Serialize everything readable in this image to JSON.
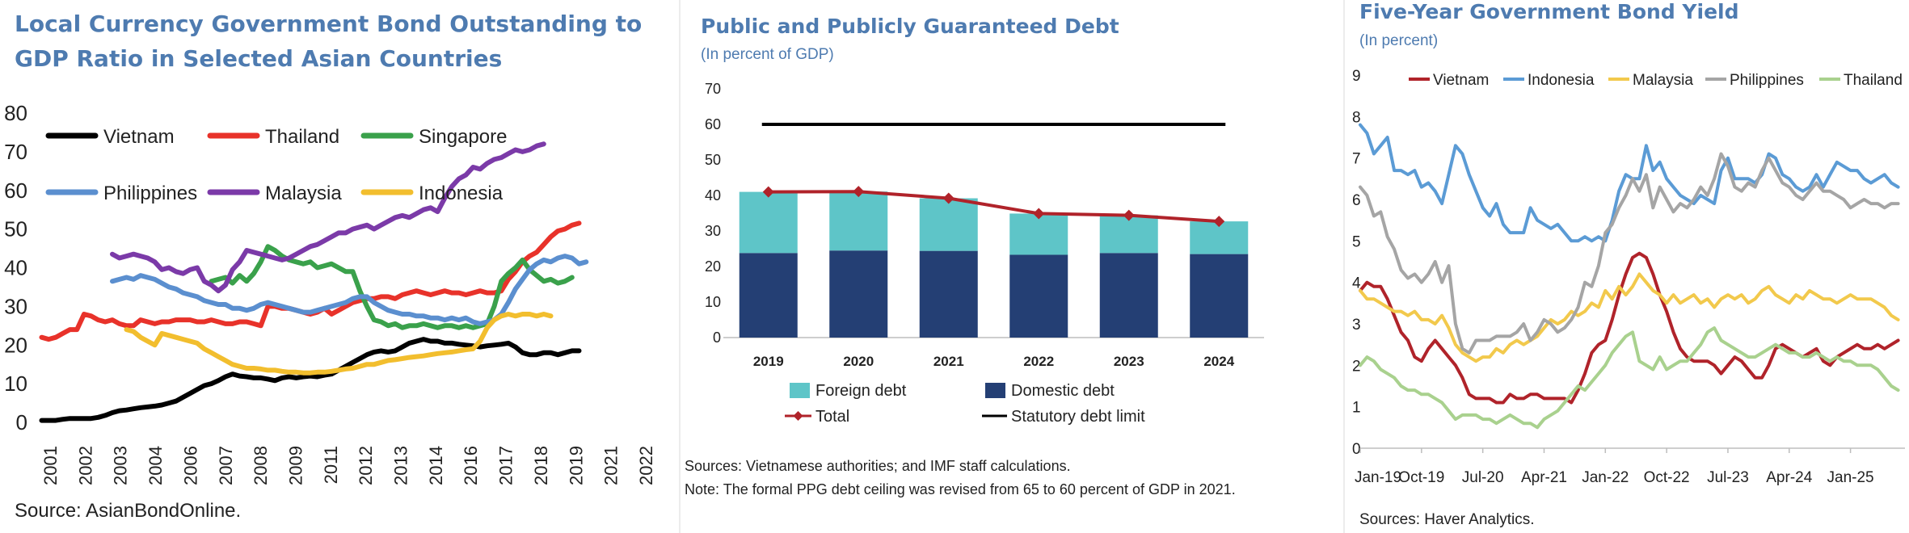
{
  "charts": [
    {
      "title_line1": "Local Currency Government Bond Outstanding to",
      "title_line2": "GDP Ratio in Selected Asian Countries",
      "source": "Source: AsianBondOnline."
    },
    {
      "title": "Public and Publicly Guaranteed Debt",
      "subtitle": "(In percent of GDP)",
      "sources": "Sources: Vietnamese authorities; and IMF staff calculations.",
      "note": "Note: The formal PPG debt ceiling was revised from 65 to 60 percent of GDP in 2021."
    },
    {
      "title": "Five-Year Government Bond Yield",
      "subtitle": "(In percent)",
      "sources": "Sources: Haver Analytics."
    }
  ],
  "chart_data": [
    {
      "type": "line",
      "title": "Local Currency Government Bond Outstanding to GDP Ratio in Selected Asian Countries",
      "x_start": 2001.0,
      "x_step": 0.25,
      "xlim": [
        2000.9,
        2023.1
      ],
      "ylim": [
        0,
        80
      ],
      "yticks": [
        0,
        10,
        20,
        30,
        40,
        50,
        60,
        70,
        80
      ],
      "xtick_labels": [
        "2001",
        "2002",
        "2003",
        "2004",
        "2006",
        "2007",
        "2008",
        "2009",
        "2011",
        "2012",
        "2013",
        "2014",
        "2016",
        "2017",
        "2018",
        "2019",
        "2021",
        "2022"
      ],
      "legend": [
        "Vietnam",
        "Thailand",
        "Singapore",
        "Philippines",
        "Malaysia",
        "Indonesia"
      ],
      "series": [
        {
          "name": "Vietnam",
          "color": "#000000",
          "start": 2001.0,
          "values": [
            0.5,
            0.5,
            0.5,
            0.8,
            1.0,
            1.0,
            1.0,
            1.0,
            1.3,
            1.8,
            2.5,
            3.0,
            3.2,
            3.5,
            3.8,
            4.0,
            4.2,
            4.5,
            5.0,
            5.5,
            6.5,
            7.5,
            8.5,
            9.5,
            10.0,
            10.8,
            11.8,
            12.5,
            12.0,
            11.8,
            11.5,
            11.5,
            11.2,
            10.8,
            11.5,
            11.8,
            11.5,
            11.8,
            12.0,
            11.8,
            12.2,
            12.5,
            13.5,
            14.5,
            15.5,
            16.5,
            17.5,
            18.2,
            18.5,
            18.2,
            18.5,
            19.5,
            20.5,
            21.0,
            21.5,
            21.0,
            21.0,
            20.5,
            20.5,
            20.2,
            20.0,
            19.8,
            19.5,
            19.8,
            20.0,
            20.2,
            20.5,
            19.5,
            18.0,
            17.5,
            17.5,
            18.0,
            18.0,
            17.5,
            18.0,
            18.5,
            18.5
          ]
        },
        {
          "name": "Thailand",
          "color": "#e8322a",
          "start": 2001.0,
          "values": [
            22.0,
            21.5,
            22.0,
            23.0,
            24.0,
            24.0,
            28.0,
            27.5,
            26.5,
            26.0,
            26.5,
            25.5,
            25.0,
            25.0,
            26.5,
            26.0,
            25.5,
            26.0,
            26.0,
            26.5,
            26.5,
            26.5,
            26.0,
            26.0,
            26.5,
            26.0,
            25.5,
            25.5,
            26.0,
            26.0,
            25.5,
            25.0,
            30.0,
            30.0,
            29.5,
            29.5,
            29.0,
            28.5,
            28.0,
            28.5,
            29.5,
            28.0,
            29.0,
            30.0,
            31.0,
            31.5,
            32.0,
            32.0,
            32.5,
            32.5,
            32.0,
            33.0,
            33.5,
            34.0,
            33.5,
            33.0,
            33.5,
            34.0,
            33.5,
            33.5,
            33.0,
            33.5,
            34.0,
            33.5,
            33.5,
            34.0,
            37.0,
            39.0,
            41.5,
            43.0,
            44.0,
            46.0,
            48.0,
            49.5,
            50.0,
            51.0,
            51.5
          ]
        },
        {
          "name": "Singapore",
          "color": "#3aa14b",
          "start": 2007.0,
          "values": [
            36.5,
            37.0,
            37.5,
            36.0,
            38.0,
            36.5,
            38.5,
            41.5,
            45.5,
            44.5,
            43.0,
            42.0,
            41.5,
            41.0,
            41.5,
            40.0,
            40.5,
            41.0,
            40.0,
            39.0,
            39.0,
            34.0,
            30.0,
            26.5,
            26.0,
            25.0,
            25.5,
            24.5,
            25.0,
            25.0,
            25.5,
            25.0,
            24.5,
            25.0,
            25.0,
            24.5,
            25.0,
            24.5,
            25.0,
            25.5,
            30.0,
            36.5,
            38.5,
            40.0,
            42.0,
            39.5,
            38.0,
            36.5,
            37.0,
            36.0,
            36.5,
            37.5
          ]
        },
        {
          "name": "Philippines",
          "color": "#5b8fcf",
          "start": 2003.5,
          "values": [
            36.5,
            37.0,
            37.5,
            37.0,
            38.0,
            37.5,
            37.0,
            36.0,
            35.0,
            34.5,
            33.5,
            33.0,
            32.5,
            31.5,
            31.0,
            30.5,
            30.5,
            29.5,
            29.5,
            29.0,
            29.5,
            30.5,
            31.0,
            30.5,
            30.0,
            29.5,
            29.0,
            28.5,
            28.5,
            29.0,
            29.5,
            30.0,
            30.5,
            31.0,
            32.0,
            32.5,
            32.5,
            31.0,
            30.0,
            29.0,
            28.5,
            28.0,
            28.0,
            27.5,
            27.5,
            27.0,
            27.0,
            26.5,
            27.0,
            26.5,
            27.0,
            26.0,
            25.5,
            26.0,
            26.5,
            28.0,
            31.0,
            34.5,
            37.0,
            39.5,
            41.0,
            42.0,
            41.5,
            42.5,
            43.0,
            42.5,
            41.0,
            41.5
          ]
        },
        {
          "name": "Malaysia",
          "color": "#7b3aa8",
          "start": 2003.5,
          "values": [
            43.5,
            42.5,
            43.0,
            43.5,
            43.0,
            42.5,
            41.5,
            39.5,
            40.0,
            39.0,
            38.5,
            39.5,
            40.0,
            36.5,
            35.5,
            34.0,
            35.5,
            39.5,
            41.5,
            44.5,
            44.0,
            43.5,
            43.0,
            42.5,
            42.0,
            42.5,
            43.5,
            44.5,
            45.5,
            46.0,
            47.0,
            48.0,
            49.0,
            49.0,
            50.0,
            50.5,
            51.0,
            50.0,
            51.0,
            52.0,
            53.0,
            53.5,
            53.0,
            54.0,
            55.0,
            55.5,
            54.5,
            58.0,
            61.0,
            63.0,
            64.0,
            66.0,
            65.5,
            67.0,
            68.0,
            68.5,
            69.5,
            70.5,
            70.0,
            70.5,
            71.5,
            72.0
          ]
        },
        {
          "name": "Indonesia",
          "color": "#f2be2e",
          "start": 2004.0,
          "values": [
            24.0,
            23.5,
            22.0,
            21.0,
            20.0,
            23.0,
            22.5,
            22.0,
            21.5,
            21.0,
            20.5,
            19.0,
            18.0,
            17.0,
            16.0,
            15.0,
            14.5,
            14.0,
            14.0,
            13.8,
            13.5,
            13.5,
            13.2,
            13.0,
            13.0,
            12.8,
            12.8,
            13.0,
            13.0,
            13.2,
            13.5,
            13.8,
            14.0,
            14.5,
            15.0,
            15.0,
            15.5,
            16.0,
            16.2,
            16.5,
            16.8,
            17.0,
            17.2,
            17.5,
            17.8,
            18.0,
            18.2,
            18.5,
            18.8,
            19.0,
            21.0,
            24.5,
            26.5,
            27.5,
            28.0,
            27.5,
            28.0,
            28.0,
            27.5,
            28.0,
            27.5
          ]
        }
      ]
    },
    {
      "type": "bar",
      "title": "Public and Publicly Guaranteed Debt",
      "ylabel": "In percent of GDP",
      "ylim": [
        0,
        70
      ],
      "yticks": [
        0,
        10,
        20,
        30,
        40,
        50,
        60,
        70
      ],
      "categories": [
        "2019",
        "2020",
        "2021",
        "2022",
        "2023",
        "2024"
      ],
      "legend": [
        "Foreign debt",
        "Domestic debt",
        "Total",
        "Statutory debt limit"
      ],
      "series": [
        {
          "name": "Domestic debt",
          "color": "#243f74",
          "values": [
            23.8,
            24.5,
            24.4,
            23.3,
            23.8,
            23.5
          ]
        },
        {
          "name": "Foreign debt",
          "color": "#5ec5c8",
          "values": [
            17.2,
            16.6,
            14.8,
            11.6,
            10.6,
            9.2
          ]
        }
      ],
      "total": {
        "name": "Total",
        "color": "#b0232a",
        "values": [
          41.0,
          41.1,
          39.2,
          34.9,
          34.4,
          32.7
        ]
      },
      "limit": {
        "name": "Statutory debt limit",
        "value": 60
      }
    },
    {
      "type": "line",
      "title": "Five-Year Government Bond Yield",
      "ylabel": "In percent",
      "xlim": [
        0,
        80
      ],
      "ylim": [
        0,
        9
      ],
      "yticks": [
        0,
        1,
        2,
        3,
        4,
        5,
        6,
        7,
        8,
        9
      ],
      "xtick_labels": [
        "Jan-19",
        "Oct-19",
        "Jul-20",
        "Apr-21",
        "Jan-22",
        "Oct-22",
        "Jul-23",
        "Apr-24",
        "Jan-25"
      ],
      "legend": [
        "Vietnam",
        "Indonesia",
        "Malaysia",
        "Philippines",
        "Thailand"
      ],
      "series": [
        {
          "name": "Vietnam",
          "color": "#b0232a",
          "values": [
            3.8,
            4.0,
            3.9,
            3.9,
            3.6,
            3.2,
            2.8,
            2.6,
            2.2,
            2.1,
            2.4,
            2.6,
            2.4,
            2.2,
            2.0,
            1.7,
            1.3,
            1.2,
            1.2,
            1.2,
            1.1,
            1.1,
            1.3,
            1.2,
            1.2,
            1.3,
            1.3,
            1.2,
            1.2,
            1.2,
            1.2,
            1.1,
            1.4,
            1.8,
            2.3,
            2.5,
            2.6,
            3.1,
            3.7,
            4.2,
            4.6,
            4.7,
            4.6,
            4.2,
            3.7,
            3.3,
            2.8,
            2.4,
            2.2,
            2.1,
            2.1,
            2.1,
            2.0,
            1.8,
            2.0,
            2.2,
            2.1,
            1.9,
            1.7,
            1.7,
            2.0,
            2.4,
            2.5,
            2.4,
            2.3,
            2.2,
            2.3,
            2.4,
            2.1,
            2.0,
            2.2,
            2.3,
            2.4,
            2.5,
            2.4,
            2.4,
            2.5,
            2.4,
            2.5,
            2.6
          ]
        },
        {
          "name": "Indonesia",
          "color": "#5b9bd5",
          "values": [
            7.8,
            7.6,
            7.1,
            7.3,
            7.5,
            6.7,
            6.7,
            6.6,
            6.7,
            6.3,
            6.4,
            6.2,
            5.9,
            6.6,
            7.3,
            7.1,
            6.6,
            6.2,
            5.8,
            5.6,
            5.9,
            5.4,
            5.2,
            5.2,
            5.2,
            5.8,
            5.5,
            5.4,
            5.3,
            5.4,
            5.2,
            5.0,
            5.0,
            5.1,
            5.0,
            5.1,
            5.0,
            5.5,
            6.2,
            6.6,
            6.5,
            6.5,
            7.3,
            6.7,
            6.9,
            6.5,
            6.3,
            6.1,
            6.0,
            5.9,
            6.1,
            6.0,
            5.9,
            6.7,
            7.0,
            6.5,
            6.5,
            6.5,
            6.4,
            6.6,
            7.1,
            7.0,
            6.6,
            6.5,
            6.3,
            6.2,
            6.3,
            6.6,
            6.3,
            6.6,
            6.9,
            6.8,
            6.7,
            6.7,
            6.5,
            6.4,
            6.5,
            6.6,
            6.4,
            6.3
          ]
        },
        {
          "name": "Malaysia",
          "color": "#f2c94c",
          "values": [
            3.8,
            3.6,
            3.6,
            3.5,
            3.4,
            3.3,
            3.3,
            3.2,
            3.3,
            3.1,
            3.1,
            3.0,
            3.2,
            2.9,
            2.5,
            2.3,
            2.2,
            2.1,
            2.2,
            2.2,
            2.4,
            2.3,
            2.5,
            2.6,
            2.5,
            2.6,
            2.7,
            2.9,
            3.1,
            3.0,
            3.1,
            3.3,
            3.2,
            3.3,
            3.5,
            3.4,
            3.8,
            3.6,
            3.9,
            3.7,
            3.9,
            4.2,
            4.0,
            3.8,
            3.7,
            3.5,
            3.7,
            3.5,
            3.6,
            3.7,
            3.5,
            3.6,
            3.4,
            3.6,
            3.7,
            3.6,
            3.7,
            3.5,
            3.6,
            3.8,
            3.9,
            3.7,
            3.6,
            3.5,
            3.7,
            3.6,
            3.8,
            3.7,
            3.6,
            3.6,
            3.5,
            3.6,
            3.7,
            3.6,
            3.6,
            3.6,
            3.5,
            3.4,
            3.2,
            3.1
          ]
        },
        {
          "name": "Philippines",
          "color": "#a5a5a5",
          "values": [
            6.3,
            6.1,
            5.6,
            5.7,
            5.1,
            4.8,
            4.3,
            4.1,
            4.2,
            4.0,
            4.2,
            4.5,
            4.0,
            4.4,
            3.0,
            2.4,
            2.3,
            2.6,
            2.6,
            2.6,
            2.7,
            2.7,
            2.7,
            2.8,
            3.0,
            2.6,
            2.8,
            3.1,
            3.0,
            2.8,
            2.9,
            3.1,
            3.4,
            4.0,
            3.9,
            4.4,
            5.2,
            5.4,
            5.8,
            6.1,
            6.5,
            6.2,
            6.6,
            5.8,
            6.3,
            6.0,
            5.7,
            5.9,
            5.8,
            6.0,
            6.3,
            6.1,
            6.5,
            7.1,
            6.8,
            6.3,
            6.2,
            6.4,
            6.3,
            6.7,
            7.0,
            6.7,
            6.4,
            6.3,
            6.1,
            6.0,
            6.2,
            6.4,
            6.2,
            6.2,
            6.1,
            6.0,
            5.8,
            5.9,
            6.0,
            5.9,
            5.9,
            5.8,
            5.9,
            5.9
          ]
        },
        {
          "name": "Thailand",
          "color": "#a9d18e",
          "values": [
            2.0,
            2.2,
            2.1,
            1.9,
            1.8,
            1.7,
            1.5,
            1.4,
            1.4,
            1.3,
            1.3,
            1.2,
            1.1,
            0.9,
            0.7,
            0.8,
            0.8,
            0.8,
            0.7,
            0.7,
            0.6,
            0.7,
            0.8,
            0.7,
            0.6,
            0.6,
            0.5,
            0.7,
            0.8,
            0.9,
            1.1,
            1.3,
            1.5,
            1.4,
            1.6,
            1.8,
            2.0,
            2.3,
            2.5,
            2.7,
            2.8,
            2.1,
            2.0,
            1.9,
            2.2,
            1.9,
            2.0,
            2.1,
            2.1,
            2.3,
            2.5,
            2.8,
            2.9,
            2.6,
            2.5,
            2.4,
            2.3,
            2.2,
            2.2,
            2.3,
            2.4,
            2.5,
            2.4,
            2.3,
            2.3,
            2.2,
            2.2,
            2.3,
            2.2,
            2.1,
            2.2,
            2.1,
            2.1,
            2.0,
            2.0,
            2.0,
            1.9,
            1.7,
            1.5,
            1.4
          ]
        }
      ]
    }
  ]
}
